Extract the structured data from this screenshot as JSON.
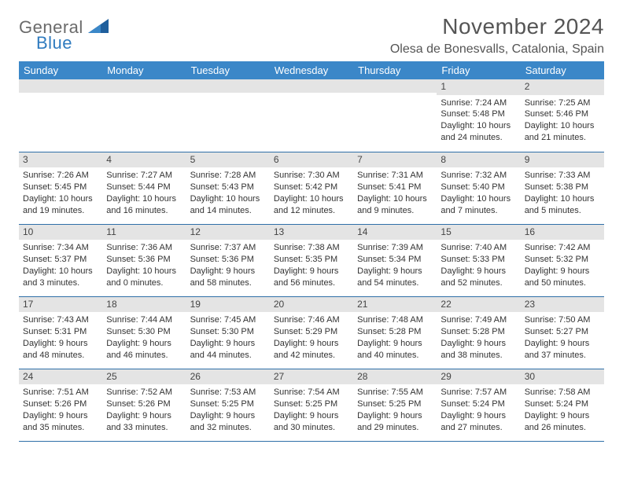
{
  "brand": {
    "line1": "General",
    "line2": "Blue"
  },
  "title": "November 2024",
  "location": "Olesa de Bonesvalls, Catalonia, Spain",
  "colors": {
    "header_bg": "#3b87c8",
    "header_text": "#ffffff",
    "daynum_bg": "#e4e4e4",
    "row_border": "#2f6fa8",
    "brand_gray": "#6b6b6b",
    "brand_blue": "#2f7bbf"
  },
  "weekdays": [
    "Sunday",
    "Monday",
    "Tuesday",
    "Wednesday",
    "Thursday",
    "Friday",
    "Saturday"
  ],
  "weeks": [
    [
      {
        "n": "",
        "sunrise": "",
        "sunset": "",
        "daylight": ""
      },
      {
        "n": "",
        "sunrise": "",
        "sunset": "",
        "daylight": ""
      },
      {
        "n": "",
        "sunrise": "",
        "sunset": "",
        "daylight": ""
      },
      {
        "n": "",
        "sunrise": "",
        "sunset": "",
        "daylight": ""
      },
      {
        "n": "",
        "sunrise": "",
        "sunset": "",
        "daylight": ""
      },
      {
        "n": "1",
        "sunrise": "Sunrise: 7:24 AM",
        "sunset": "Sunset: 5:48 PM",
        "daylight": "Daylight: 10 hours and 24 minutes."
      },
      {
        "n": "2",
        "sunrise": "Sunrise: 7:25 AM",
        "sunset": "Sunset: 5:46 PM",
        "daylight": "Daylight: 10 hours and 21 minutes."
      }
    ],
    [
      {
        "n": "3",
        "sunrise": "Sunrise: 7:26 AM",
        "sunset": "Sunset: 5:45 PM",
        "daylight": "Daylight: 10 hours and 19 minutes."
      },
      {
        "n": "4",
        "sunrise": "Sunrise: 7:27 AM",
        "sunset": "Sunset: 5:44 PM",
        "daylight": "Daylight: 10 hours and 16 minutes."
      },
      {
        "n": "5",
        "sunrise": "Sunrise: 7:28 AM",
        "sunset": "Sunset: 5:43 PM",
        "daylight": "Daylight: 10 hours and 14 minutes."
      },
      {
        "n": "6",
        "sunrise": "Sunrise: 7:30 AM",
        "sunset": "Sunset: 5:42 PM",
        "daylight": "Daylight: 10 hours and 12 minutes."
      },
      {
        "n": "7",
        "sunrise": "Sunrise: 7:31 AM",
        "sunset": "Sunset: 5:41 PM",
        "daylight": "Daylight: 10 hours and 9 minutes."
      },
      {
        "n": "8",
        "sunrise": "Sunrise: 7:32 AM",
        "sunset": "Sunset: 5:40 PM",
        "daylight": "Daylight: 10 hours and 7 minutes."
      },
      {
        "n": "9",
        "sunrise": "Sunrise: 7:33 AM",
        "sunset": "Sunset: 5:38 PM",
        "daylight": "Daylight: 10 hours and 5 minutes."
      }
    ],
    [
      {
        "n": "10",
        "sunrise": "Sunrise: 7:34 AM",
        "sunset": "Sunset: 5:37 PM",
        "daylight": "Daylight: 10 hours and 3 minutes."
      },
      {
        "n": "11",
        "sunrise": "Sunrise: 7:36 AM",
        "sunset": "Sunset: 5:36 PM",
        "daylight": "Daylight: 10 hours and 0 minutes."
      },
      {
        "n": "12",
        "sunrise": "Sunrise: 7:37 AM",
        "sunset": "Sunset: 5:36 PM",
        "daylight": "Daylight: 9 hours and 58 minutes."
      },
      {
        "n": "13",
        "sunrise": "Sunrise: 7:38 AM",
        "sunset": "Sunset: 5:35 PM",
        "daylight": "Daylight: 9 hours and 56 minutes."
      },
      {
        "n": "14",
        "sunrise": "Sunrise: 7:39 AM",
        "sunset": "Sunset: 5:34 PM",
        "daylight": "Daylight: 9 hours and 54 minutes."
      },
      {
        "n": "15",
        "sunrise": "Sunrise: 7:40 AM",
        "sunset": "Sunset: 5:33 PM",
        "daylight": "Daylight: 9 hours and 52 minutes."
      },
      {
        "n": "16",
        "sunrise": "Sunrise: 7:42 AM",
        "sunset": "Sunset: 5:32 PM",
        "daylight": "Daylight: 9 hours and 50 minutes."
      }
    ],
    [
      {
        "n": "17",
        "sunrise": "Sunrise: 7:43 AM",
        "sunset": "Sunset: 5:31 PM",
        "daylight": "Daylight: 9 hours and 48 minutes."
      },
      {
        "n": "18",
        "sunrise": "Sunrise: 7:44 AM",
        "sunset": "Sunset: 5:30 PM",
        "daylight": "Daylight: 9 hours and 46 minutes."
      },
      {
        "n": "19",
        "sunrise": "Sunrise: 7:45 AM",
        "sunset": "Sunset: 5:30 PM",
        "daylight": "Daylight: 9 hours and 44 minutes."
      },
      {
        "n": "20",
        "sunrise": "Sunrise: 7:46 AM",
        "sunset": "Sunset: 5:29 PM",
        "daylight": "Daylight: 9 hours and 42 minutes."
      },
      {
        "n": "21",
        "sunrise": "Sunrise: 7:48 AM",
        "sunset": "Sunset: 5:28 PM",
        "daylight": "Daylight: 9 hours and 40 minutes."
      },
      {
        "n": "22",
        "sunrise": "Sunrise: 7:49 AM",
        "sunset": "Sunset: 5:28 PM",
        "daylight": "Daylight: 9 hours and 38 minutes."
      },
      {
        "n": "23",
        "sunrise": "Sunrise: 7:50 AM",
        "sunset": "Sunset: 5:27 PM",
        "daylight": "Daylight: 9 hours and 37 minutes."
      }
    ],
    [
      {
        "n": "24",
        "sunrise": "Sunrise: 7:51 AM",
        "sunset": "Sunset: 5:26 PM",
        "daylight": "Daylight: 9 hours and 35 minutes."
      },
      {
        "n": "25",
        "sunrise": "Sunrise: 7:52 AM",
        "sunset": "Sunset: 5:26 PM",
        "daylight": "Daylight: 9 hours and 33 minutes."
      },
      {
        "n": "26",
        "sunrise": "Sunrise: 7:53 AM",
        "sunset": "Sunset: 5:25 PM",
        "daylight": "Daylight: 9 hours and 32 minutes."
      },
      {
        "n": "27",
        "sunrise": "Sunrise: 7:54 AM",
        "sunset": "Sunset: 5:25 PM",
        "daylight": "Daylight: 9 hours and 30 minutes."
      },
      {
        "n": "28",
        "sunrise": "Sunrise: 7:55 AM",
        "sunset": "Sunset: 5:25 PM",
        "daylight": "Daylight: 9 hours and 29 minutes."
      },
      {
        "n": "29",
        "sunrise": "Sunrise: 7:57 AM",
        "sunset": "Sunset: 5:24 PM",
        "daylight": "Daylight: 9 hours and 27 minutes."
      },
      {
        "n": "30",
        "sunrise": "Sunrise: 7:58 AM",
        "sunset": "Sunset: 5:24 PM",
        "daylight": "Daylight: 9 hours and 26 minutes."
      }
    ]
  ]
}
